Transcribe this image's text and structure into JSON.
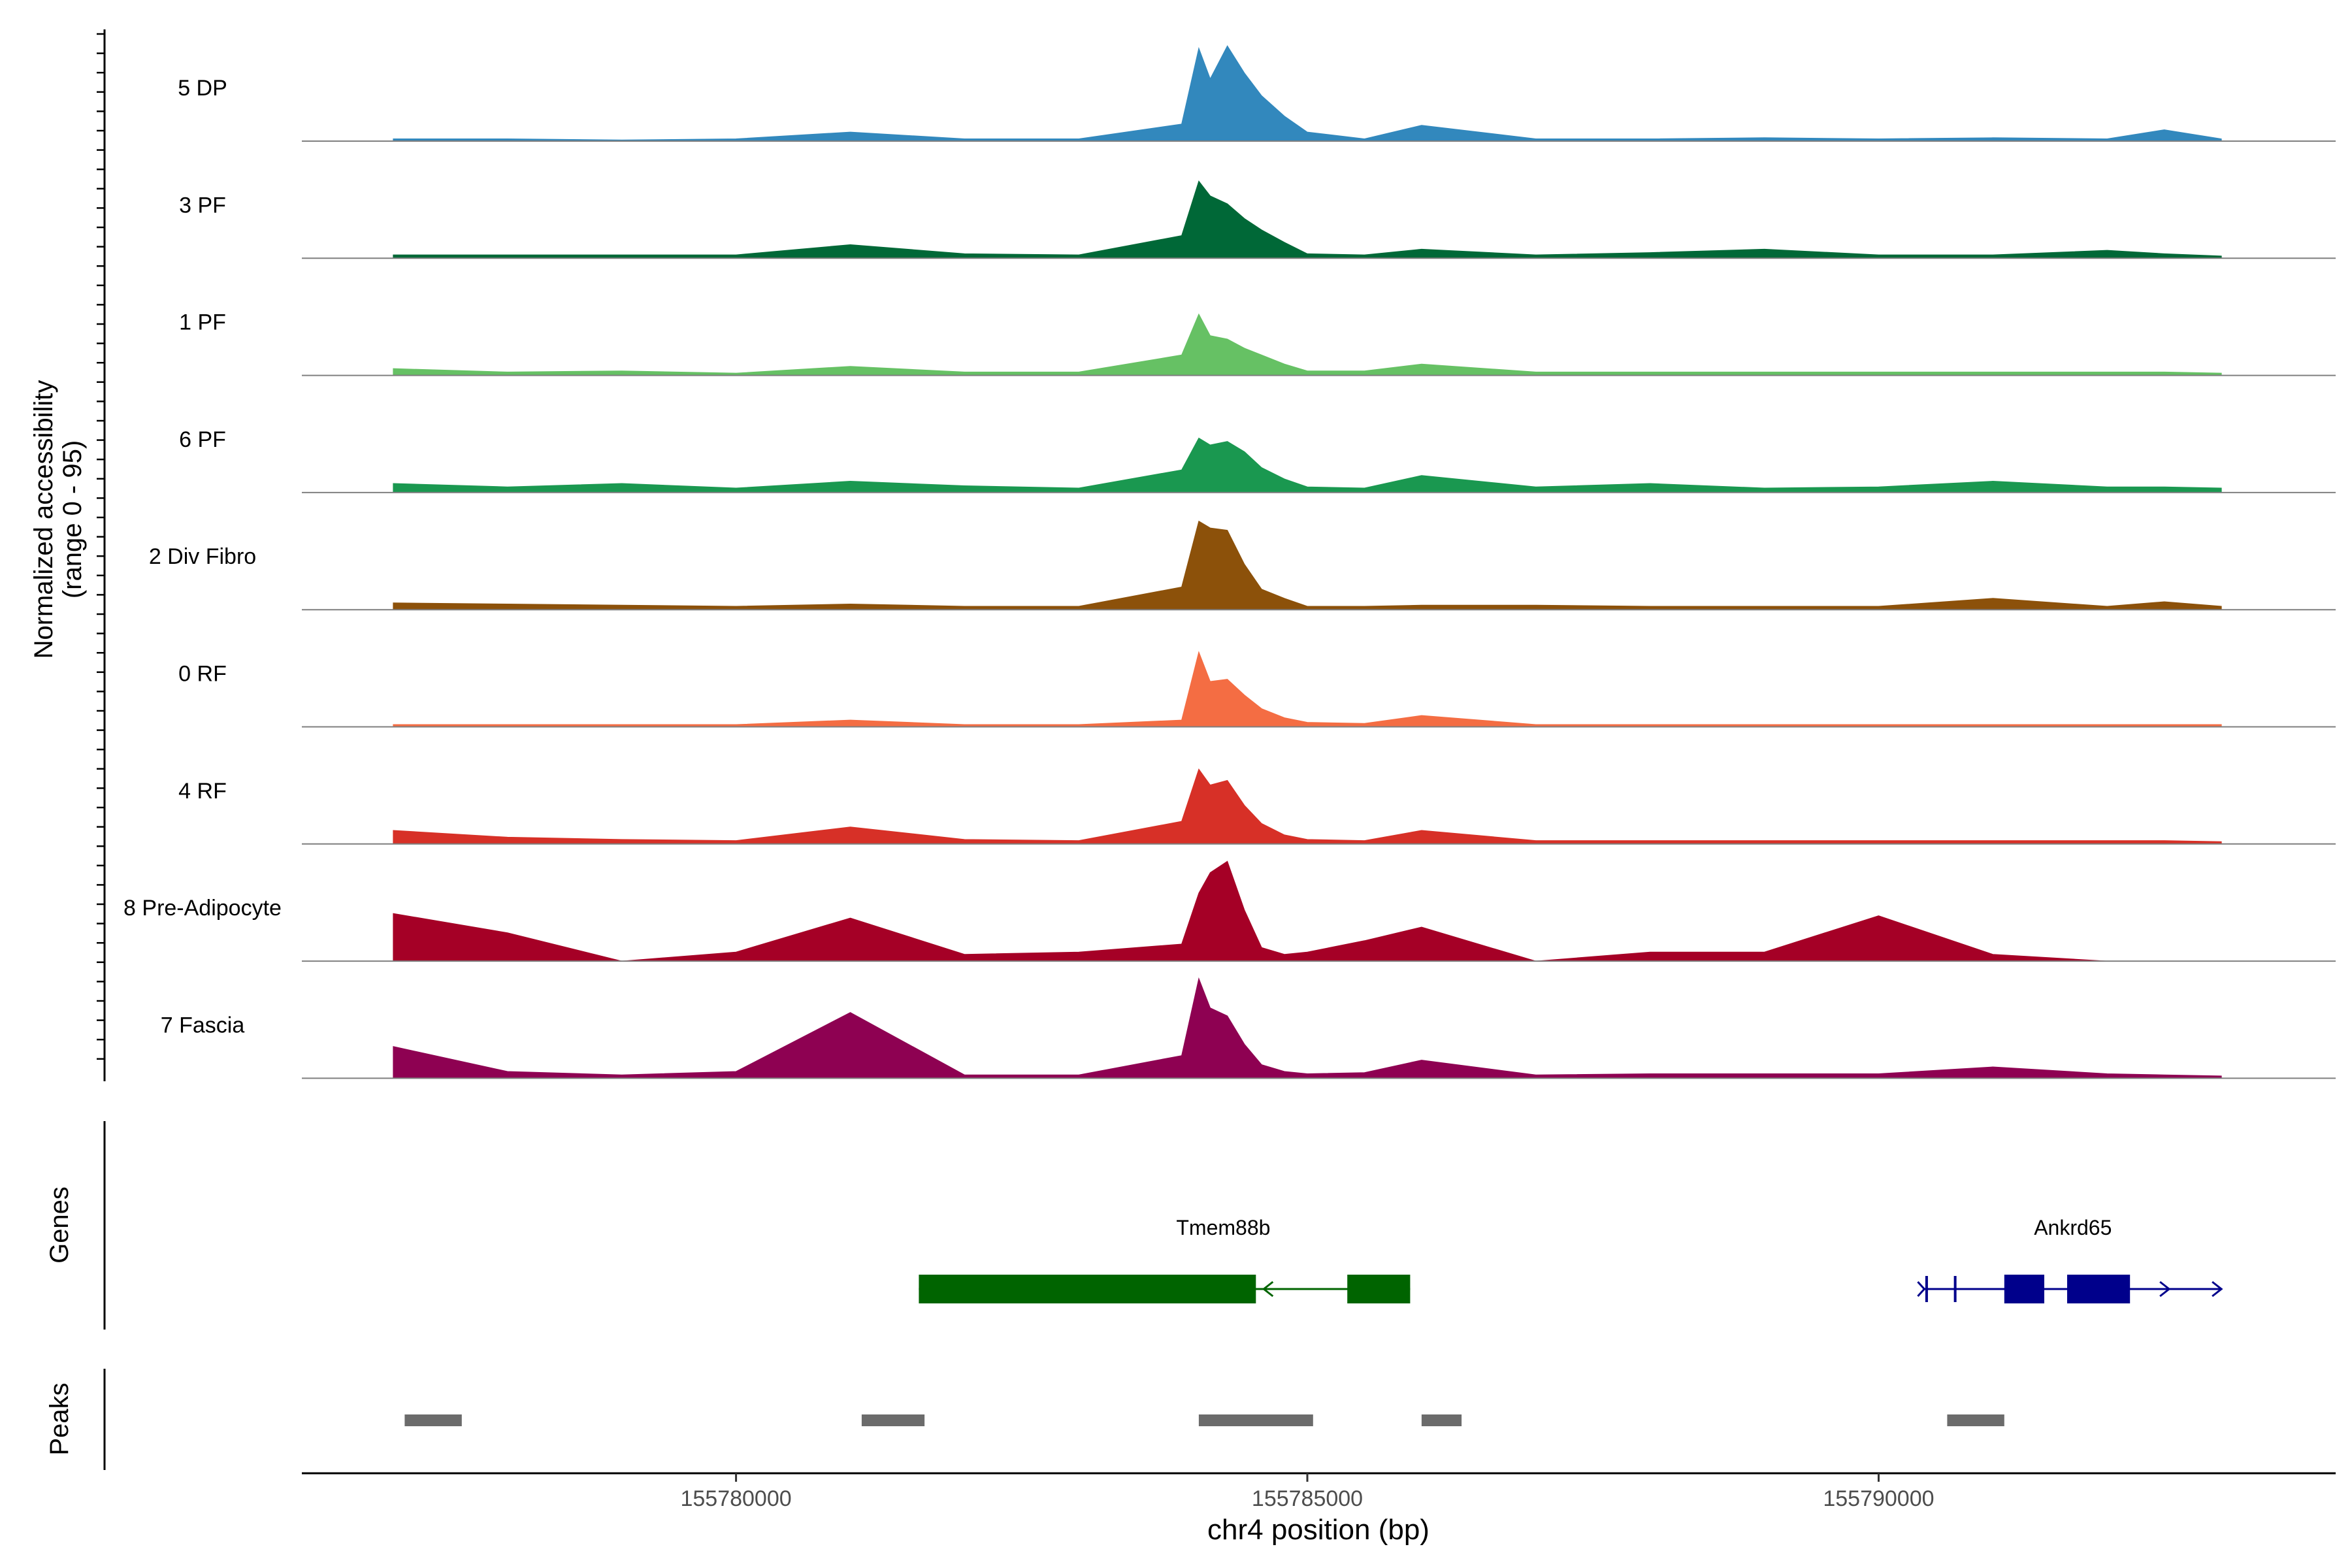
{
  "chart_data": {
    "type": "area",
    "title": "",
    "xlabel": "chr4 position (bp)",
    "ylabel_line1": "Normalized accessibility",
    "ylabel_line2": "(range 0 - 95)",
    "xlim": [
      155776200,
      155794000
    ],
    "ylim": [
      0,
      95
    ],
    "x_ticks": [
      155780000,
      155785000,
      155790000
    ],
    "x_tick_labels": [
      "155780000",
      "155785000",
      "155790000"
    ],
    "tracks_label_genes": "Genes",
    "tracks_label_peaks": "Peaks",
    "series": [
      {
        "name": "5 DP",
        "color": "#3288BD",
        "x": [
          155777000,
          155778000,
          155779000,
          155780000,
          155781000,
          155782000,
          155783000,
          155783900,
          155784050,
          155784150,
          155784300,
          155784450,
          155784600,
          155784800,
          155785000,
          155785500,
          155786000,
          155787000,
          155788000,
          155789000,
          155790000,
          155791000,
          155792000,
          155792500,
          155793000
        ],
        "values": [
          2,
          2,
          1,
          2,
          8,
          2,
          2,
          15,
          82,
          55,
          84,
          60,
          40,
          22,
          8,
          2,
          14,
          2,
          2,
          3,
          2,
          3,
          2,
          10,
          2
        ]
      },
      {
        "name": "3 PF",
        "color": "#006837",
        "x": [
          155777000,
          155778000,
          155779000,
          155780000,
          155781000,
          155782000,
          155783000,
          155783900,
          155784050,
          155784150,
          155784300,
          155784450,
          155784600,
          155784800,
          155785000,
          155785500,
          155786000,
          155787000,
          155788000,
          155789000,
          155790000,
          155791000,
          155792000,
          155792500,
          155793000
        ],
        "values": [
          3,
          3,
          3,
          3,
          12,
          4,
          3,
          20,
          68,
          55,
          48,
          35,
          25,
          14,
          4,
          3,
          8,
          3,
          5,
          8,
          3,
          3,
          7,
          4,
          2
        ]
      },
      {
        "name": "1 PF",
        "color": "#66C164",
        "x": [
          155777000,
          155778000,
          155779000,
          155780000,
          155781000,
          155782000,
          155783000,
          155783900,
          155784050,
          155784150,
          155784300,
          155784450,
          155784600,
          155784800,
          155785000,
          155785500,
          155786000,
          155787000,
          155788000,
          155789000,
          155790000,
          155791000,
          155792000,
          155792500,
          155793000
        ],
        "values": [
          6,
          3,
          4,
          2,
          8,
          3,
          3,
          18,
          54,
          35,
          32,
          24,
          18,
          10,
          4,
          4,
          10,
          3,
          3,
          3,
          3,
          3,
          3,
          3,
          2
        ]
      },
      {
        "name": "6 PF",
        "color": "#1A9850",
        "x": [
          155777000,
          155778000,
          155779000,
          155780000,
          155781000,
          155782000,
          155783000,
          155783900,
          155784050,
          155784150,
          155784300,
          155784450,
          155784600,
          155784800,
          155785000,
          155785500,
          155786000,
          155787000,
          155788000,
          155789000,
          155790000,
          155791000,
          155792000,
          155792500,
          155793000
        ],
        "values": [
          8,
          5,
          8,
          4,
          10,
          6,
          4,
          20,
          48,
          42,
          45,
          36,
          22,
          12,
          5,
          4,
          15,
          5,
          8,
          4,
          5,
          10,
          5,
          5,
          4
        ]
      },
      {
        "name": "2 Div Fibro",
        "color": "#8C510A",
        "x": [
          155777000,
          155778000,
          155779000,
          155780000,
          155781000,
          155782000,
          155783000,
          155783900,
          155784050,
          155784150,
          155784300,
          155784450,
          155784600,
          155784800,
          155785000,
          155785500,
          155786000,
          155787000,
          155788000,
          155789000,
          155790000,
          155791000,
          155792000,
          155792500,
          155793000
        ],
        "values": [
          6,
          5,
          4,
          3,
          5,
          3,
          3,
          20,
          78,
          72,
          70,
          40,
          18,
          10,
          3,
          3,
          4,
          4,
          3,
          3,
          3,
          10,
          3,
          7,
          3
        ]
      },
      {
        "name": "0 RF",
        "color": "#F46D43",
        "x": [
          155777000,
          155778000,
          155779000,
          155780000,
          155781000,
          155782000,
          155783000,
          155783900,
          155784050,
          155784150,
          155784300,
          155784450,
          155784600,
          155784800,
          155785000,
          155785500,
          155786000,
          155787000,
          155788000,
          155789000,
          155790000,
          155791000,
          155792000,
          155792500,
          155793000
        ],
        "values": [
          2,
          2,
          2,
          2,
          6,
          2,
          2,
          6,
          66,
          40,
          42,
          28,
          16,
          8,
          4,
          3,
          10,
          2,
          2,
          2,
          2,
          2,
          2,
          2,
          2
        ]
      },
      {
        "name": "4 RF",
        "color": "#D73027",
        "x": [
          155777000,
          155778000,
          155779000,
          155780000,
          155781000,
          155782000,
          155783000,
          155783900,
          155784050,
          155784150,
          155784300,
          155784450,
          155784600,
          155784800,
          155785000,
          155785500,
          155786000,
          155787000,
          155788000,
          155789000,
          155790000,
          155791000,
          155792000,
          155792500,
          155793000
        ],
        "values": [
          12,
          6,
          4,
          3,
          15,
          4,
          3,
          20,
          66,
          52,
          56,
          34,
          18,
          8,
          4,
          3,
          12,
          3,
          3,
          3,
          3,
          3,
          3,
          3,
          2
        ]
      },
      {
        "name": "8 Pre-Adipocyte",
        "color": "#A50026",
        "x": [
          155777000,
          155778000,
          155779000,
          155780000,
          155781000,
          155782000,
          155783000,
          155783900,
          155784050,
          155784150,
          155784300,
          155784450,
          155784600,
          155784800,
          155785000,
          155785500,
          155786000,
          155787000,
          155788000,
          155789000,
          155790000,
          155791000,
          155792000,
          155792500,
          155793000
        ],
        "values": [
          42,
          25,
          0,
          8,
          38,
          6,
          8,
          15,
          60,
          78,
          88,
          45,
          12,
          6,
          8,
          18,
          30,
          0,
          8,
          8,
          40,
          6,
          0,
          0,
          0
        ]
      },
      {
        "name": "7 Fascia",
        "color": "#8E0152",
        "x": [
          155777000,
          155778000,
          155779000,
          155780000,
          155781000,
          155782000,
          155783000,
          155783900,
          155784050,
          155784150,
          155784300,
          155784450,
          155784600,
          155784800,
          155785000,
          155785500,
          155786000,
          155787000,
          155788000,
          155789000,
          155790000,
          155791000,
          155792000,
          155792500,
          155793000
        ],
        "values": [
          28,
          6,
          3,
          6,
          58,
          3,
          3,
          20,
          88,
          62,
          55,
          30,
          12,
          6,
          4,
          5,
          16,
          3,
          4,
          4,
          4,
          10,
          4,
          3,
          2
        ]
      }
    ],
    "genes": [
      {
        "name": "Tmem88b",
        "color": "#006400",
        "strand": "-",
        "start": 155781600,
        "end": 155785900,
        "exons": [
          [
            155781600,
            155784550
          ],
          [
            155785350,
            155785900
          ]
        ]
      },
      {
        "name": "Ankrd65",
        "color": "#00008B",
        "strand": "+",
        "start": 155790400,
        "end": 155793000,
        "exons": [
          [
            155791100,
            155791450
          ],
          [
            155791650,
            155792200
          ]
        ],
        "small_exons": [
          155790420,
          155790670
        ]
      }
    ],
    "peaks": [
      [
        155777100,
        155777600
      ],
      [
        155781100,
        155781650
      ],
      [
        155784050,
        155785050
      ],
      [
        155786000,
        155786350
      ],
      [
        155790600,
        155791100
      ]
    ]
  }
}
